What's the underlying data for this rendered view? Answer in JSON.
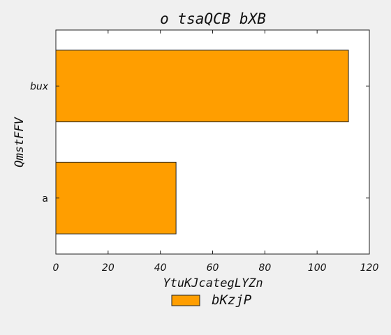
{
  "chart_data": {
    "type": "bar",
    "orientation": "horizontal",
    "title": "o tsaQCB bXB",
    "xlabel": "YtuKJcategLYZn",
    "ylabel": "QmstFFV",
    "categories": [
      "a",
      "bux"
    ],
    "series": [
      {
        "name": "bKzjP",
        "values": [
          46,
          112
        ],
        "color": "#ff9e00"
      }
    ],
    "xlim": [
      0,
      120
    ],
    "xticks": [
      0,
      20,
      40,
      60,
      80,
      100,
      120
    ],
    "grid": false,
    "legend": "bottom-center"
  }
}
